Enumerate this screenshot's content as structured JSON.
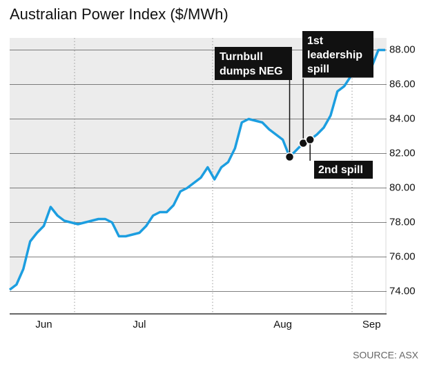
{
  "chart_data": {
    "type": "line",
    "title": "Australian Power Index ($/MWh)",
    "categories": [
      null,
      null,
      null,
      null,
      null,
      "Jun",
      null,
      null,
      null,
      null,
      null,
      null,
      null,
      null,
      null,
      null,
      null,
      null,
      null,
      "Jul",
      null,
      null,
      null,
      null,
      null,
      null,
      null,
      null,
      null,
      null,
      null,
      null,
      null,
      null,
      null,
      null,
      null,
      null,
      null,
      null,
      "Aug",
      null,
      null,
      null,
      null,
      null,
      null,
      null,
      null,
      null,
      null,
      null,
      null,
      "Sep",
      null,
      null
    ],
    "series": [
      {
        "name": "Australian Power Index",
        "color": "#1c9ee0",
        "values": [
          74.1,
          74.4,
          75.3,
          76.9,
          77.4,
          77.8,
          78.9,
          78.4,
          78.1,
          78.0,
          77.9,
          78.0,
          78.1,
          78.2,
          78.2,
          78.0,
          77.2,
          77.2,
          77.3,
          77.4,
          77.8,
          78.4,
          78.6,
          78.6,
          79.0,
          79.8,
          80.0,
          80.3,
          80.6,
          81.2,
          80.5,
          81.2,
          81.5,
          82.3,
          83.8,
          84.0,
          83.9,
          83.8,
          83.4,
          83.1,
          82.8,
          81.8,
          82.2,
          82.6,
          82.8,
          83.1,
          83.5,
          84.2,
          85.6,
          85.9,
          86.5,
          87.0,
          86.9,
          87.0,
          88.0,
          88.0
        ]
      }
    ],
    "ylim": [
      72.7,
      88.7
    ],
    "yticks": [
      {
        "value": 74,
        "label": "74.00"
      },
      {
        "value": 76,
        "label": "76.00"
      },
      {
        "value": 78,
        "label": "78.00"
      },
      {
        "value": 80,
        "label": "80.00"
      },
      {
        "value": 82,
        "label": "82.00"
      },
      {
        "value": 84,
        "label": "84.00"
      },
      {
        "value": 86,
        "label": "86.00"
      },
      {
        "value": 88,
        "label": "88.00"
      }
    ],
    "grid": true,
    "annotations": [
      [
        "Turnbull",
        "dumps NEG"
      ],
      [
        "1st",
        "leadership",
        "spill"
      ],
      [
        "2nd spill"
      ]
    ],
    "source": "SOURCE: ASX"
  }
}
